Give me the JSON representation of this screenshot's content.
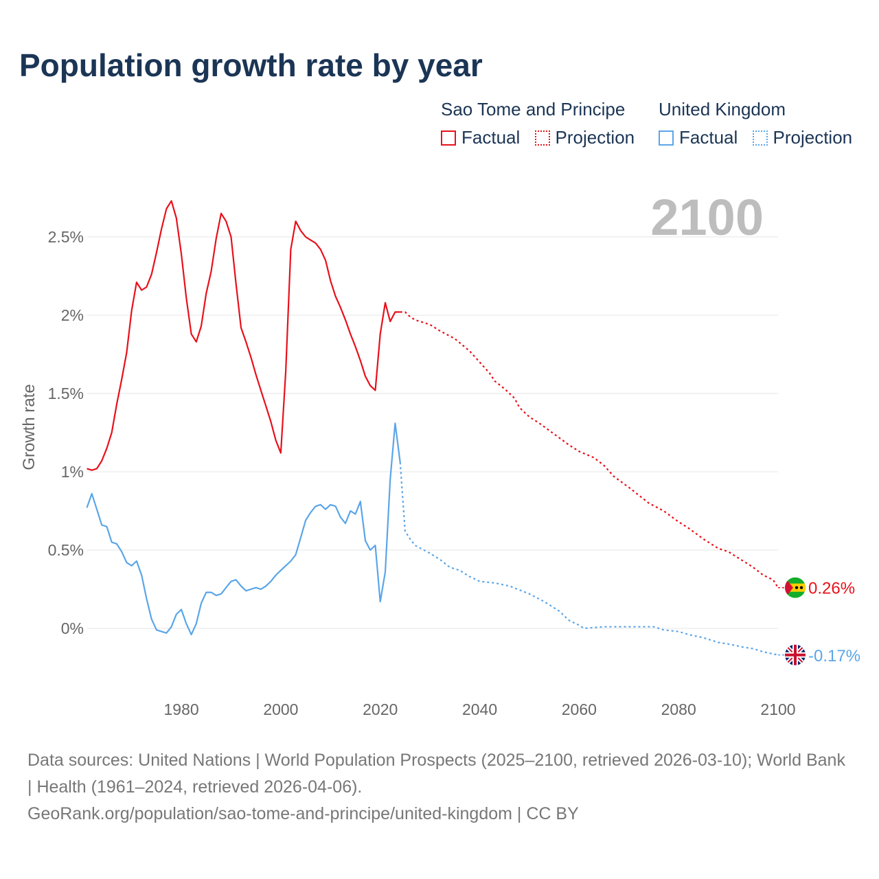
{
  "chart_data": {
    "type": "line",
    "title": "Population growth rate by year",
    "ylabel": "Growth rate",
    "xlabel": "",
    "current_year_label": "2100",
    "xlim": [
      1961,
      2100
    ],
    "ylim": [
      -0.35,
      2.9
    ],
    "x_ticks": [
      1980,
      2000,
      2020,
      2040,
      2060,
      2080,
      2100
    ],
    "x_tick_labels": [
      "1980",
      "2000",
      "2020",
      "2040",
      "2060",
      "2080",
      "2100"
    ],
    "y_ticks": [
      0,
      0.5,
      1,
      1.5,
      2,
      2.5
    ],
    "y_tick_labels": [
      "0%",
      "0.5%",
      "1%",
      "1.5%",
      "2%",
      "2.5%"
    ],
    "grid": true,
    "legend": [
      {
        "group": "Sao Tome and Principe",
        "items": [
          "Factual",
          "Projection"
        ],
        "color": "#e8101a"
      },
      {
        "group": "United Kingdom",
        "items": [
          "Factual",
          "Projection"
        ],
        "color": "#5aa5e8"
      }
    ],
    "series": [
      {
        "name": "Sao Tome and Principe",
        "color": "#e8101a",
        "end_label": "0.26%",
        "factual": [
          [
            1961,
            1.02
          ],
          [
            1962,
            1.01
          ],
          [
            1963,
            1.02
          ],
          [
            1964,
            1.07
          ],
          [
            1965,
            1.15
          ],
          [
            1966,
            1.25
          ],
          [
            1967,
            1.43
          ],
          [
            1968,
            1.59
          ],
          [
            1969,
            1.76
          ],
          [
            1970,
            2.03
          ],
          [
            1971,
            2.21
          ],
          [
            1972,
            2.16
          ],
          [
            1973,
            2.18
          ],
          [
            1974,
            2.26
          ],
          [
            1975,
            2.4
          ],
          [
            1976,
            2.55
          ],
          [
            1977,
            2.68
          ],
          [
            1978,
            2.73
          ],
          [
            1979,
            2.62
          ],
          [
            1980,
            2.39
          ],
          [
            1981,
            2.11
          ],
          [
            1982,
            1.88
          ],
          [
            1983,
            1.83
          ],
          [
            1984,
            1.93
          ],
          [
            1985,
            2.14
          ],
          [
            1986,
            2.28
          ],
          [
            1987,
            2.49
          ],
          [
            1988,
            2.65
          ],
          [
            1989,
            2.6
          ],
          [
            1990,
            2.5
          ],
          [
            1991,
            2.2
          ],
          [
            1992,
            1.92
          ],
          [
            1993,
            1.83
          ],
          [
            1994,
            1.73
          ],
          [
            1995,
            1.62
          ],
          [
            1996,
            1.52
          ],
          [
            1997,
            1.42
          ],
          [
            1998,
            1.32
          ],
          [
            1999,
            1.2
          ],
          [
            2000,
            1.12
          ],
          [
            2001,
            1.64
          ],
          [
            2002,
            2.42
          ],
          [
            2003,
            2.6
          ],
          [
            2004,
            2.54
          ],
          [
            2005,
            2.5
          ],
          [
            2006,
            2.48
          ],
          [
            2007,
            2.46
          ],
          [
            2008,
            2.42
          ],
          [
            2009,
            2.35
          ],
          [
            2010,
            2.22
          ],
          [
            2011,
            2.12
          ],
          [
            2012,
            2.05
          ],
          [
            2013,
            1.97
          ],
          [
            2014,
            1.88
          ],
          [
            2015,
            1.8
          ],
          [
            2016,
            1.71
          ],
          [
            2017,
            1.61
          ],
          [
            2018,
            1.55
          ],
          [
            2019,
            1.52
          ],
          [
            2020,
            1.88
          ],
          [
            2021,
            2.08
          ],
          [
            2022,
            1.96
          ],
          [
            2023,
            2.02
          ],
          [
            2024,
            2.02
          ]
        ],
        "projection": [
          [
            2024,
            2.02
          ],
          [
            2025,
            2.02
          ],
          [
            2026,
            1.99
          ],
          [
            2027,
            1.97
          ],
          [
            2030,
            1.94
          ],
          [
            2032,
            1.9
          ],
          [
            2035,
            1.85
          ],
          [
            2038,
            1.77
          ],
          [
            2040,
            1.7
          ],
          [
            2042,
            1.63
          ],
          [
            2043,
            1.58
          ],
          [
            2045,
            1.53
          ],
          [
            2047,
            1.47
          ],
          [
            2048,
            1.41
          ],
          [
            2050,
            1.35
          ],
          [
            2052,
            1.31
          ],
          [
            2055,
            1.24
          ],
          [
            2058,
            1.17
          ],
          [
            2060,
            1.13
          ],
          [
            2063,
            1.09
          ],
          [
            2065,
            1.04
          ],
          [
            2067,
            0.97
          ],
          [
            2070,
            0.9
          ],
          [
            2072,
            0.85
          ],
          [
            2074,
            0.8
          ],
          [
            2077,
            0.75
          ],
          [
            2080,
            0.68
          ],
          [
            2082,
            0.64
          ],
          [
            2085,
            0.57
          ],
          [
            2088,
            0.51
          ],
          [
            2090,
            0.49
          ],
          [
            2093,
            0.43
          ],
          [
            2095,
            0.39
          ],
          [
            2097,
            0.34
          ],
          [
            2099,
            0.31
          ],
          [
            2100,
            0.26
          ]
        ]
      },
      {
        "name": "United Kingdom",
        "color": "#5aa5e8",
        "end_label": "-0.17%",
        "factual": [
          [
            1961,
            0.77
          ],
          [
            1962,
            0.86
          ],
          [
            1963,
            0.76
          ],
          [
            1964,
            0.66
          ],
          [
            1965,
            0.65
          ],
          [
            1966,
            0.55
          ],
          [
            1967,
            0.54
          ],
          [
            1968,
            0.49
          ],
          [
            1969,
            0.42
          ],
          [
            1970,
            0.4
          ],
          [
            1971,
            0.43
          ],
          [
            1972,
            0.34
          ],
          [
            1973,
            0.19
          ],
          [
            1974,
            0.06
          ],
          [
            1975,
            -0.01
          ],
          [
            1976,
            -0.02
          ],
          [
            1977,
            -0.03
          ],
          [
            1978,
            0.01
          ],
          [
            1979,
            0.09
          ],
          [
            1980,
            0.12
          ],
          [
            1981,
            0.03
          ],
          [
            1982,
            -0.04
          ],
          [
            1983,
            0.03
          ],
          [
            1984,
            0.16
          ],
          [
            1985,
            0.23
          ],
          [
            1986,
            0.23
          ],
          [
            1987,
            0.21
          ],
          [
            1988,
            0.22
          ],
          [
            1989,
            0.26
          ],
          [
            1990,
            0.3
          ],
          [
            1991,
            0.31
          ],
          [
            1992,
            0.27
          ],
          [
            1993,
            0.24
          ],
          [
            1994,
            0.25
          ],
          [
            1995,
            0.26
          ],
          [
            1996,
            0.25
          ],
          [
            1997,
            0.27
          ],
          [
            1998,
            0.3
          ],
          [
            1999,
            0.34
          ],
          [
            2000,
            0.37
          ],
          [
            2001,
            0.4
          ],
          [
            2002,
            0.43
          ],
          [
            2003,
            0.47
          ],
          [
            2004,
            0.58
          ],
          [
            2005,
            0.69
          ],
          [
            2006,
            0.74
          ],
          [
            2007,
            0.78
          ],
          [
            2008,
            0.79
          ],
          [
            2009,
            0.76
          ],
          [
            2010,
            0.79
          ],
          [
            2011,
            0.78
          ],
          [
            2012,
            0.71
          ],
          [
            2013,
            0.67
          ],
          [
            2014,
            0.75
          ],
          [
            2015,
            0.73
          ],
          [
            2016,
            0.81
          ],
          [
            2017,
            0.56
          ],
          [
            2018,
            0.5
          ],
          [
            2019,
            0.53
          ],
          [
            2020,
            0.17
          ],
          [
            2021,
            0.36
          ],
          [
            2022,
            0.95
          ],
          [
            2023,
            1.31
          ],
          [
            2024,
            1.06
          ]
        ],
        "projection": [
          [
            2024,
            1.06
          ],
          [
            2025,
            0.62
          ],
          [
            2026,
            0.57
          ],
          [
            2027,
            0.53
          ],
          [
            2030,
            0.48
          ],
          [
            2032,
            0.44
          ],
          [
            2034,
            0.39
          ],
          [
            2036,
            0.37
          ],
          [
            2038,
            0.33
          ],
          [
            2040,
            0.3
          ],
          [
            2043,
            0.29
          ],
          [
            2046,
            0.27
          ],
          [
            2050,
            0.22
          ],
          [
            2053,
            0.17
          ],
          [
            2056,
            0.11
          ],
          [
            2058,
            0.05
          ],
          [
            2060,
            0.02
          ],
          [
            2061,
            0.0
          ],
          [
            2065,
            0.01
          ],
          [
            2070,
            0.01
          ],
          [
            2075,
            0.01
          ],
          [
            2077,
            -0.01
          ],
          [
            2080,
            -0.02
          ],
          [
            2082,
            -0.04
          ],
          [
            2085,
            -0.06
          ],
          [
            2088,
            -0.09
          ],
          [
            2090,
            -0.1
          ],
          [
            2093,
            -0.12
          ],
          [
            2095,
            -0.13
          ],
          [
            2097,
            -0.15
          ],
          [
            2100,
            -0.17
          ]
        ]
      }
    ]
  },
  "footer": {
    "sources": "Data sources: United Nations | World Population Prospects (2025–2100, retrieved 2026-03-10); World Bank | Health (1961–2024, retrieved 2026-04-06).",
    "link": "GeoRank.org/population/sao-tome-and-principe/united-kingdom | CC BY"
  }
}
